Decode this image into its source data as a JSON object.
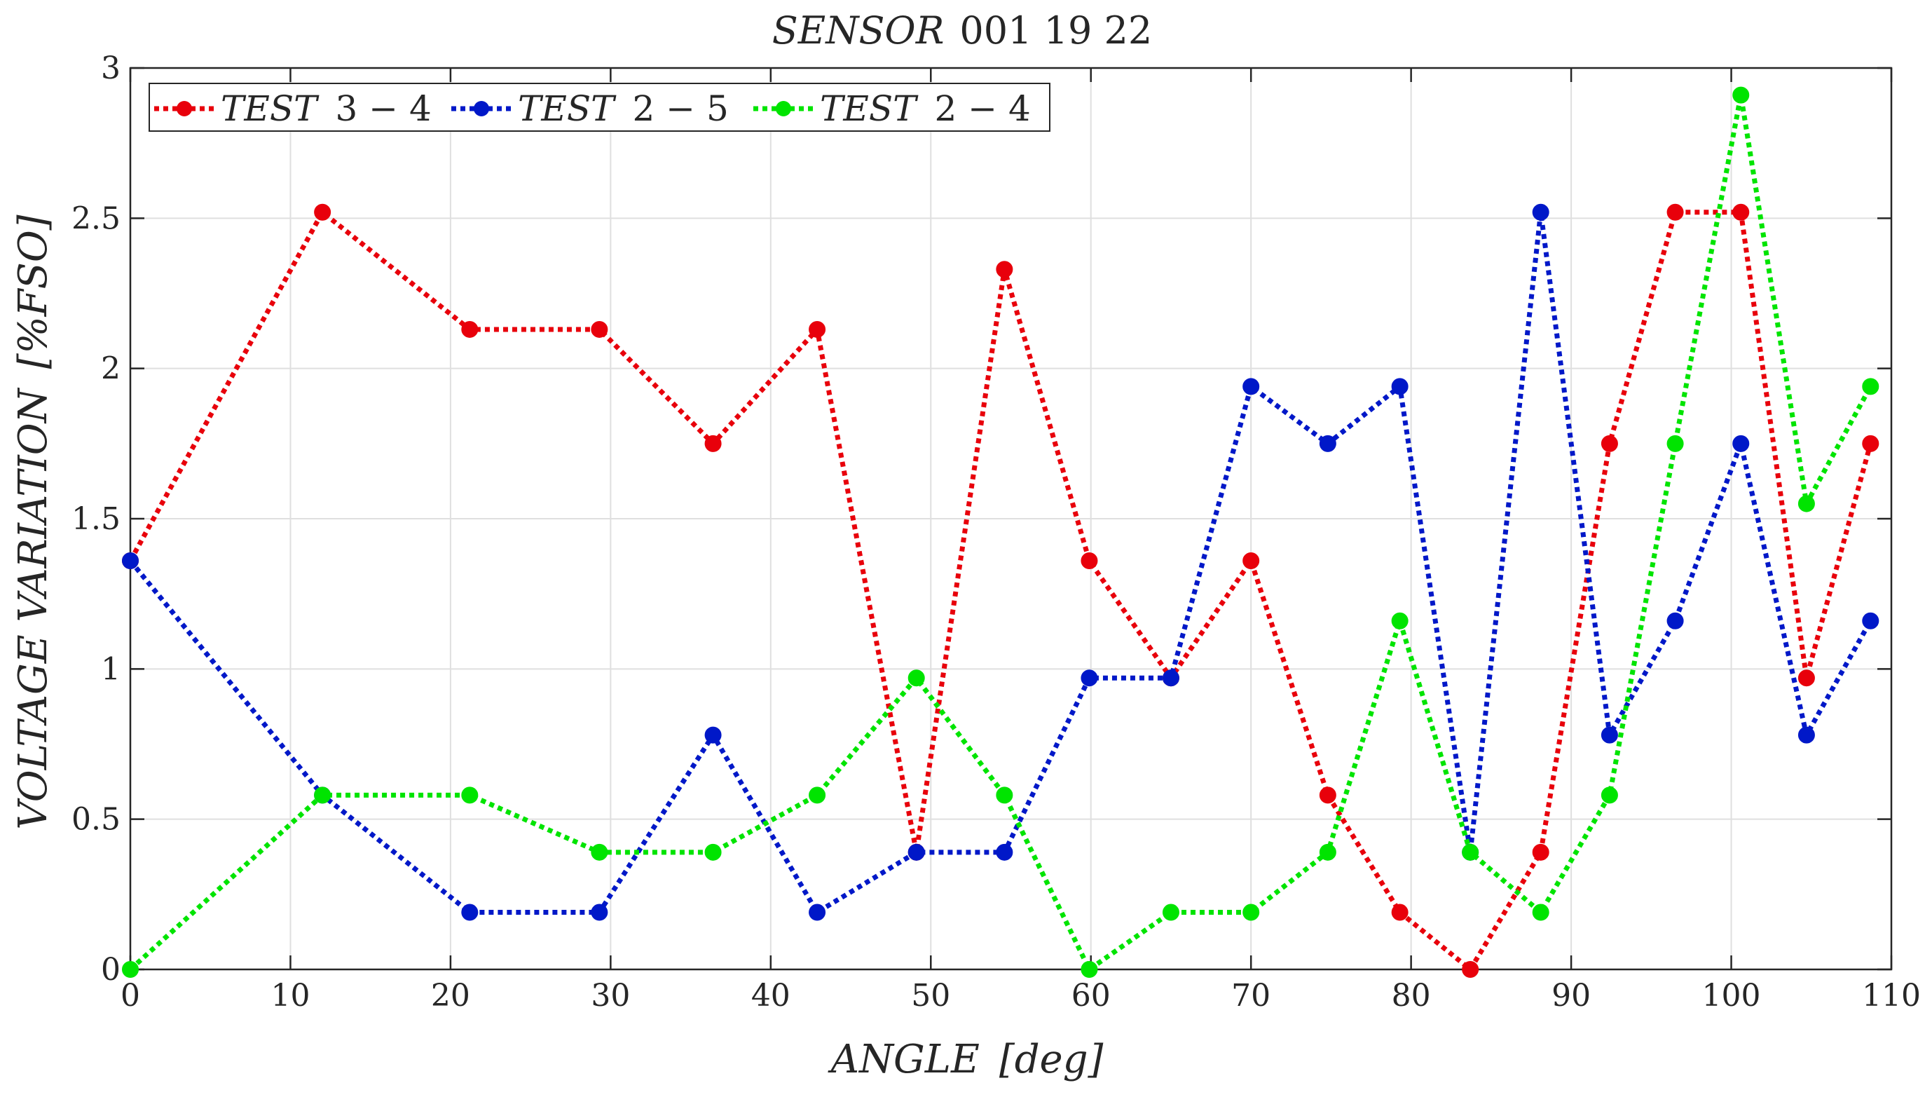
{
  "chart_data": {
    "type": "line",
    "title": "SENSOR  001 19 22",
    "title_parts": {
      "name": "SENSOR",
      "id": "001 19 22"
    },
    "xlabel": "ANGLE  [deg]",
    "xlabel_parts": {
      "name": "ANGLE",
      "unit": "[deg]"
    },
    "ylabel": "VOLTAGE  VARIATION  [%FSO]",
    "ylabel_parts": {
      "name": "VOLTAGE  VARIATION",
      "unit": "[%FSO]"
    },
    "xlim": [
      0,
      110
    ],
    "ylim": [
      0,
      3
    ],
    "xticks": [
      0,
      10,
      20,
      30,
      40,
      50,
      60,
      70,
      80,
      90,
      100,
      110
    ],
    "yticks": [
      0,
      0.5,
      1,
      1.5,
      2,
      2.5,
      3
    ],
    "grid": true,
    "legend_position": "top-left",
    "x": [
      0,
      12,
      21.2,
      29.3,
      36.4,
      42.9,
      49.1,
      54.6,
      59.9,
      65,
      70,
      74.8,
      79.3,
      83.7,
      88.1,
      92.4,
      96.5,
      100.6,
      104.7,
      108.7
    ],
    "series": [
      {
        "name": "TEST  3 − 4",
        "label_parts": {
          "name": "TEST",
          "value": "3 − 4"
        },
        "color": "#e8000b",
        "values": [
          1.36,
          2.52,
          2.13,
          2.13,
          1.75,
          2.13,
          0.39,
          2.33,
          1.36,
          0.97,
          1.36,
          0.58,
          0.19,
          0,
          0.39,
          1.75,
          2.52,
          2.52,
          0.97,
          1.75
        ]
      },
      {
        "name": "TEST  2 − 5",
        "label_parts": {
          "name": "TEST",
          "value": "2 − 5"
        },
        "color": "#0018c8",
        "values": [
          1.36,
          0.58,
          0.19,
          0.19,
          0.78,
          0.19,
          0.39,
          0.39,
          0.97,
          0.97,
          1.94,
          1.75,
          1.94,
          0.39,
          2.52,
          0.78,
          1.16,
          1.75,
          0.78,
          1.16
        ]
      },
      {
        "name": "TEST  2 − 4",
        "label_parts": {
          "name": "TEST",
          "value": "2 − 4"
        },
        "color": "#00e400",
        "values": [
          0,
          0.58,
          0.58,
          0.39,
          0.39,
          0.58,
          0.97,
          0.58,
          0,
          0.19,
          0.19,
          0.39,
          1.16,
          0.39,
          0.19,
          0.58,
          1.75,
          2.91,
          1.55,
          1.94
        ]
      }
    ]
  }
}
